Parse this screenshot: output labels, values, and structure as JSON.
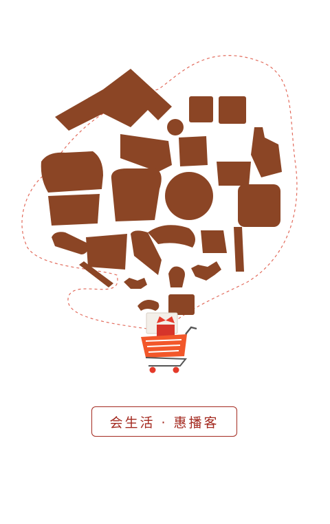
{
  "slogan": {
    "text": "会生活 · 惠播客"
  },
  "colors": {
    "food_icons": "#8b4525",
    "accent_red": "#a3291f",
    "cart_orange": "#f2572a",
    "dashed_line": "#e26b5c"
  },
  "icons": [
    "house-icon",
    "bread-loaf-icon",
    "toast-icon",
    "donut-icon",
    "bottle-icon",
    "croissant-icon",
    "cake-slice-icon",
    "ice-cream-icon",
    "candy-icon",
    "cupcake-icon",
    "baguette-icon",
    "rolling-pin-icon",
    "shopping-cart-icon",
    "gift-icon",
    "shopping-bag-icon"
  ]
}
